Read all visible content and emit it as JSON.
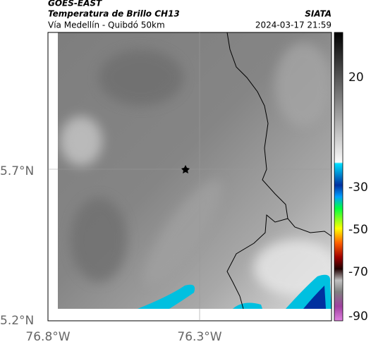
{
  "header": {
    "satellite": "GOES-EAST",
    "product": "Temperatura de Brillo CH13",
    "location": "Vía Medellín - Quibdó 50km",
    "source": "SIATA",
    "timestamp": "2024-03-17 21:59"
  },
  "map": {
    "lat_labels": [
      "5.7°N",
      "5.2°N"
    ],
    "lon_labels": [
      "76.8°W",
      "76.3°W"
    ]
  },
  "colorbar": {
    "ticks": [
      "20",
      "-30",
      "-50",
      "-70",
      "-90"
    ]
  }
}
